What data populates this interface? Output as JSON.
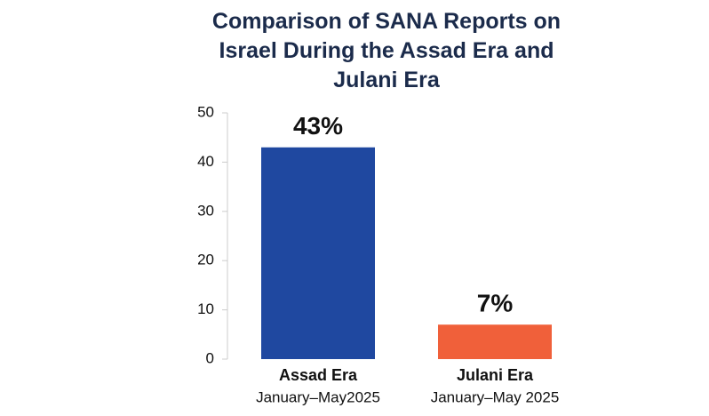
{
  "chart_data": {
    "type": "bar",
    "title": "Comparison of SANA Reports on Israel During the Assad Era and Julani Era",
    "categories": [
      "Assad Era",
      "Julani Era"
    ],
    "category_subtitles": [
      "January–May2025",
      "January–May 2025"
    ],
    "values": [
      43,
      7
    ],
    "value_labels": [
      "43%",
      "7%"
    ],
    "colors": [
      "#1f48a0",
      "#f0603a"
    ],
    "ylim": [
      0,
      50
    ],
    "yticks": [
      0,
      10,
      20,
      30,
      40,
      50
    ],
    "grid": false
  }
}
